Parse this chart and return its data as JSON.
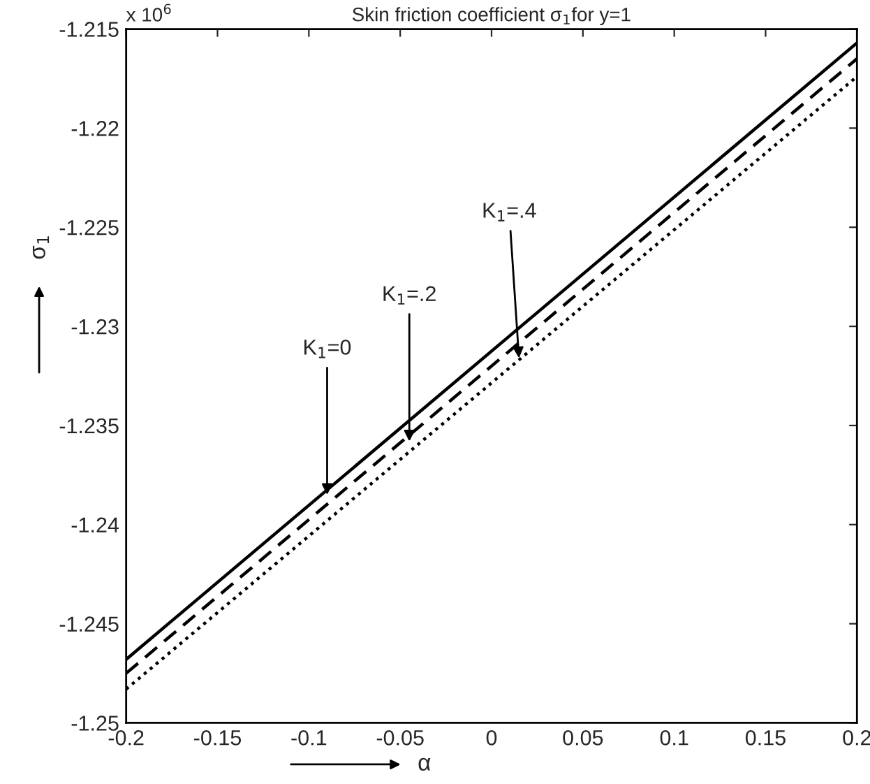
{
  "chart_data": {
    "type": "line",
    "title": "Skin friction coefficient σ$_{1}$for y=1",
    "xlabel": "α",
    "ylabel": "σ$_{1}$",
    "x": [
      -0.2,
      0.2
    ],
    "series": [
      {
        "color": "#000000",
        "line_style": "solid",
        "values": [
          -1.2468,
          -1.2157
        ]
      },
      {
        "color": "#000000",
        "line_style": "dashed",
        "values": [
          -1.2475,
          -1.2165
        ]
      },
      {
        "color": "#000000",
        "line_style": "dotted",
        "values": [
          -1.2483,
          -1.2174
        ]
      }
    ],
    "xlim": [
      -0.2,
      0.2
    ],
    "ylim": [
      -1.25,
      -1.215
    ],
    "xticks": [
      -0.2,
      -0.15,
      -0.1,
      -0.05,
      0,
      0.05,
      0.1,
      0.15,
      0.2
    ],
    "yticks": [
      -1.25,
      -1.245,
      -1.24,
      -1.235,
      -1.23,
      -1.225,
      -1.22,
      -1.215
    ],
    "grid": false,
    "legend": false,
    "marker": "none",
    "annotations": [
      "x 10$^{6}$",
      {
        "text": "K$_{1}$=0",
        "x": -0.09,
        "y": -1.2385
      },
      {
        "text": "K$_{1}$=.2",
        "x": -0.045,
        "y": -1.2358
      },
      {
        "text": "K$_{1}$=.4",
        "x": 0.015,
        "y": -1.2316
      }
    ]
  }
}
